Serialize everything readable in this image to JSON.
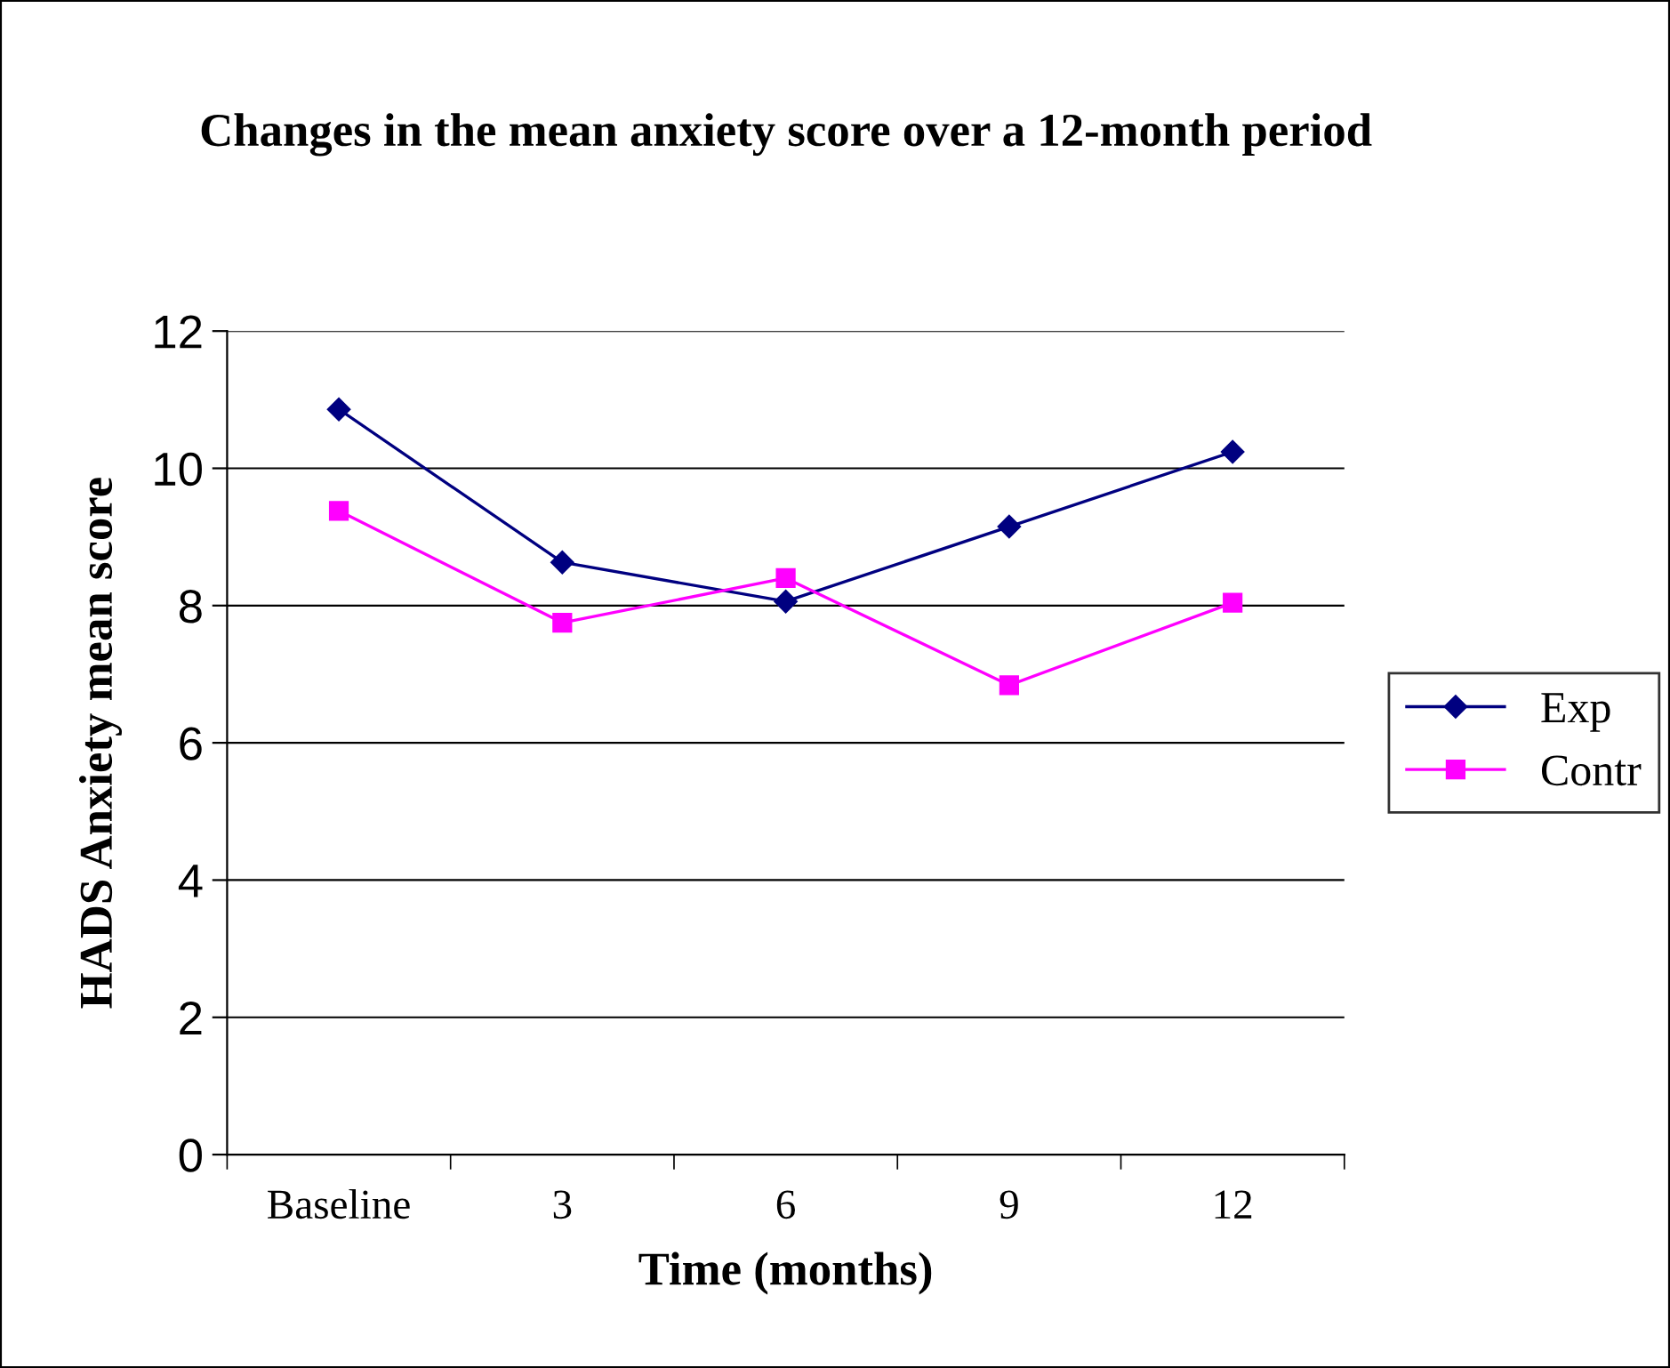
{
  "chart_data": {
    "type": "line",
    "title": "Changes in the mean anxiety score over a 12-month period",
    "xlabel": "Time (months)",
    "ylabel": "HADS Anxiety mean score",
    "categories": [
      "Baseline",
      "3",
      "6",
      "9",
      "12"
    ],
    "series": [
      {
        "name": "Exp",
        "color": "#000080",
        "marker": "diamond",
        "values": [
          10.86,
          8.63,
          8.06,
          9.15,
          10.24
        ]
      },
      {
        "name": "Contr",
        "color": "#ff00ff",
        "marker": "square",
        "values": [
          9.38,
          7.75,
          8.4,
          6.84,
          8.04
        ]
      }
    ],
    "ylim": [
      0,
      12
    ],
    "yticks": [
      0,
      2,
      4,
      6,
      8,
      10,
      12
    ],
    "grid": "y",
    "legend": "right",
    "line_style": "solid"
  }
}
